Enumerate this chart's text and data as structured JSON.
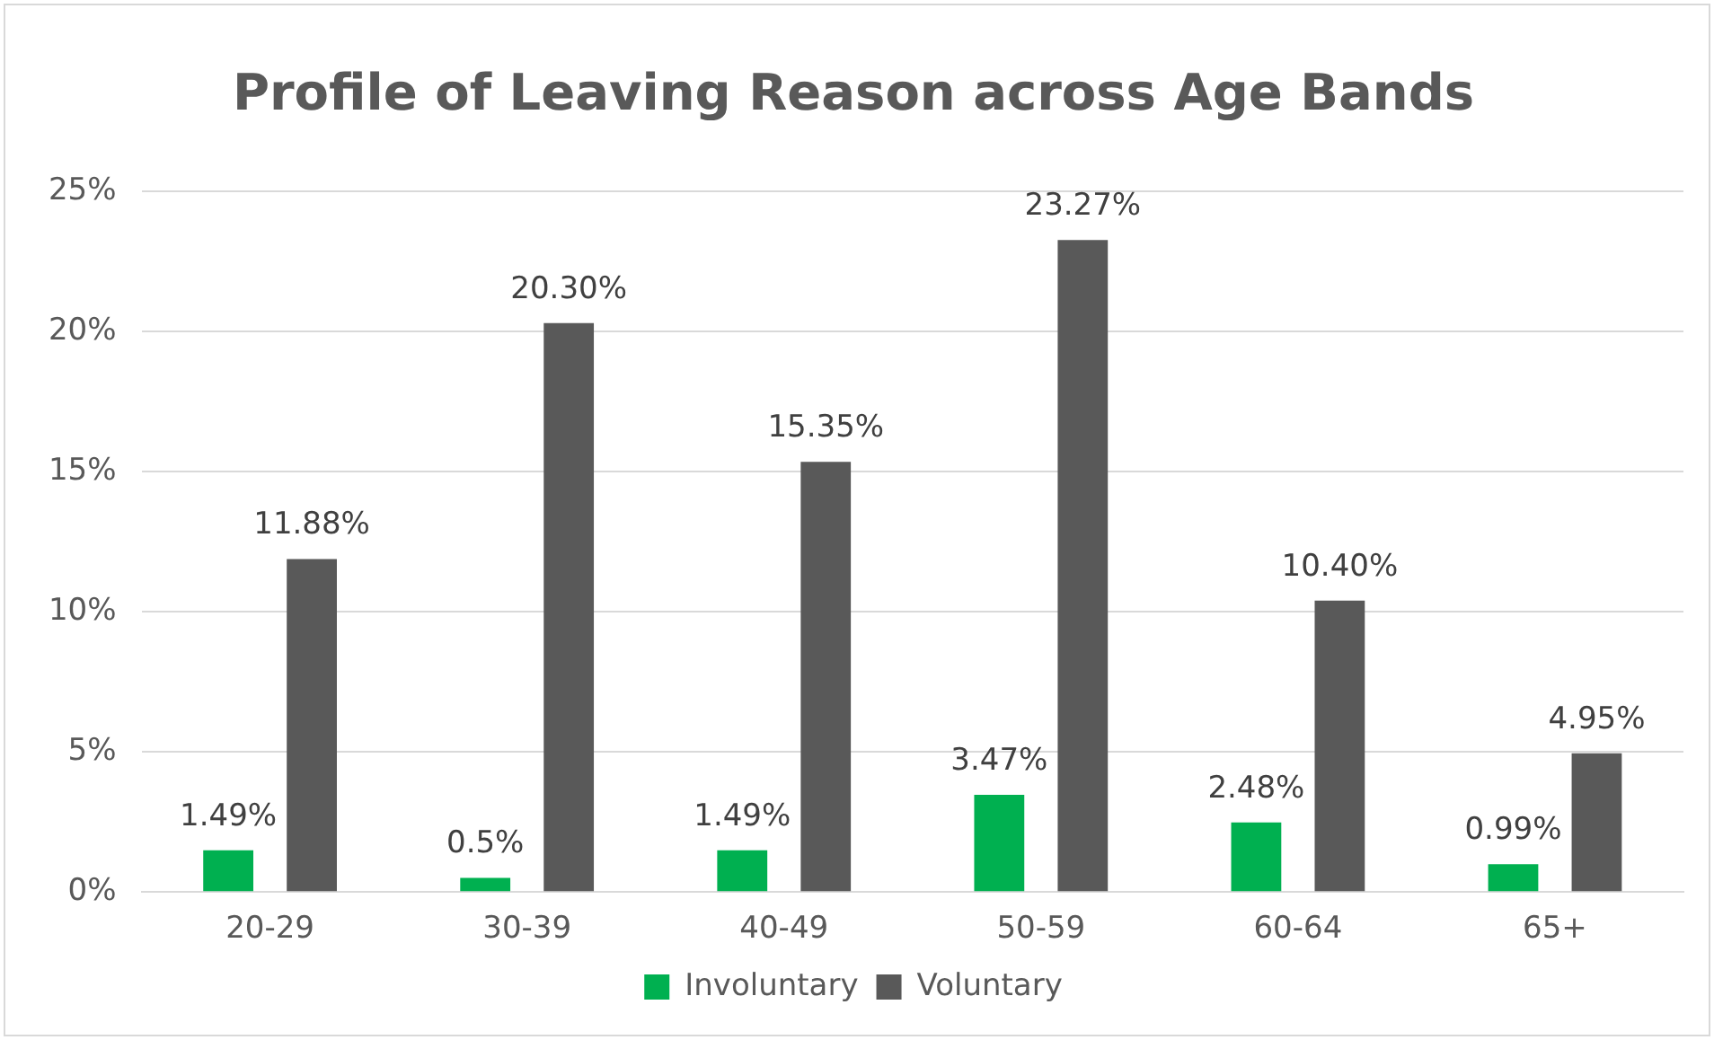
{
  "chart_data": {
    "type": "bar",
    "title": "Profile of Leaving Reason across Age Bands",
    "categories": [
      "20-29",
      "30-39",
      "40-49",
      "50-59",
      "60-64",
      "65+"
    ],
    "series": [
      {
        "name": "Involuntary",
        "color": "#00b050",
        "values": [
          1.49,
          0.5,
          1.49,
          3.47,
          2.48,
          0.99
        ],
        "value_labels": [
          "1.49%",
          "0.5%",
          "1.49%",
          "3.47%",
          "2.48%",
          "0.99%"
        ]
      },
      {
        "name": "Voluntary",
        "color": "#595959",
        "values": [
          11.88,
          20.3,
          15.35,
          23.27,
          10.4,
          4.95
        ],
        "value_labels": [
          "11.88%",
          "20.30%",
          "15.35%",
          "23.27%",
          "10.40%",
          "4.95%"
        ]
      }
    ],
    "ylim": [
      0,
      25
    ],
    "yticks": [
      {
        "value": 0,
        "label": "0%"
      },
      {
        "value": 5,
        "label": "5%"
      },
      {
        "value": 10,
        "label": "10%"
      },
      {
        "value": 15,
        "label": "15%"
      },
      {
        "value": 20,
        "label": "20%"
      },
      {
        "value": 25,
        "label": "25%"
      }
    ],
    "grid": "y",
    "legend": "bottom"
  }
}
